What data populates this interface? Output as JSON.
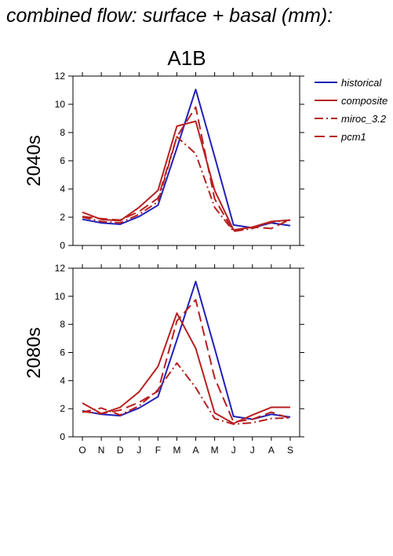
{
  "page_title": "combined flow: surface + basal (mm):",
  "scenario": "A1B",
  "colors": {
    "historical": "#2020b8",
    "model": "#b82020",
    "axis": "#000000"
  },
  "chart_data": [
    {
      "type": "line",
      "panel_label": "2040s",
      "categories": [
        "O",
        "N",
        "D",
        "J",
        "F",
        "M",
        "A",
        "M",
        "J",
        "J",
        "A",
        "S"
      ],
      "ylim": [
        0,
        12
      ],
      "yticks": [
        0,
        2,
        4,
        6,
        8,
        10,
        12
      ],
      "grid": false,
      "legend_position": "top-right",
      "series": [
        {
          "name": "historical",
          "style": "solid",
          "color": "#2020b8",
          "values": [
            1.85,
            1.6,
            1.5,
            2.05,
            2.85,
            6.9,
            11.05,
            6.3,
            1.45,
            1.25,
            1.6,
            1.4
          ]
        },
        {
          "name": "composite",
          "style": "solid",
          "color": "#b82020",
          "values": [
            2.35,
            1.85,
            1.75,
            2.7,
            3.9,
            8.45,
            8.8,
            3.9,
            1.1,
            1.3,
            1.7,
            1.8
          ]
        },
        {
          "name": "miroc_3.2",
          "style": "dashdot",
          "color": "#b82020",
          "values": [
            2.0,
            1.7,
            1.6,
            2.2,
            3.1,
            7.7,
            6.5,
            2.7,
            1.0,
            1.2,
            1.65,
            1.8
          ]
        },
        {
          "name": "pcm1",
          "style": "dash",
          "color": "#b82020",
          "values": [
            2.05,
            1.9,
            1.8,
            2.4,
            3.35,
            7.7,
            9.8,
            3.3,
            1.0,
            1.3,
            1.2,
            1.85
          ]
        }
      ]
    },
    {
      "type": "line",
      "panel_label": "2080s",
      "categories": [
        "O",
        "N",
        "D",
        "J",
        "F",
        "M",
        "A",
        "M",
        "J",
        "J",
        "A",
        "S"
      ],
      "ylim": [
        0,
        12
      ],
      "yticks": [
        0,
        2,
        4,
        6,
        8,
        10,
        12
      ],
      "grid": false,
      "series": [
        {
          "name": "historical",
          "style": "solid",
          "color": "#2020b8",
          "values": [
            1.85,
            1.6,
            1.5,
            2.05,
            2.85,
            6.9,
            11.05,
            6.3,
            1.45,
            1.25,
            1.6,
            1.4
          ]
        },
        {
          "name": "composite",
          "style": "solid",
          "color": "#b82020",
          "values": [
            2.4,
            1.65,
            2.1,
            3.2,
            5.0,
            8.8,
            6.3,
            1.7,
            0.95,
            1.55,
            2.1,
            2.1
          ]
        },
        {
          "name": "miroc_3.2",
          "style": "dashdot",
          "color": "#b82020",
          "values": [
            1.75,
            2.05,
            1.55,
            2.2,
            3.35,
            5.25,
            3.5,
            1.3,
            0.9,
            1.0,
            1.3,
            1.35
          ]
        },
        {
          "name": "pcm1",
          "style": "dash",
          "color": "#b82020",
          "values": [
            1.8,
            1.65,
            1.9,
            2.45,
            3.25,
            8.25,
            9.75,
            4.2,
            1.05,
            1.25,
            1.75,
            1.3
          ]
        }
      ]
    }
  ]
}
